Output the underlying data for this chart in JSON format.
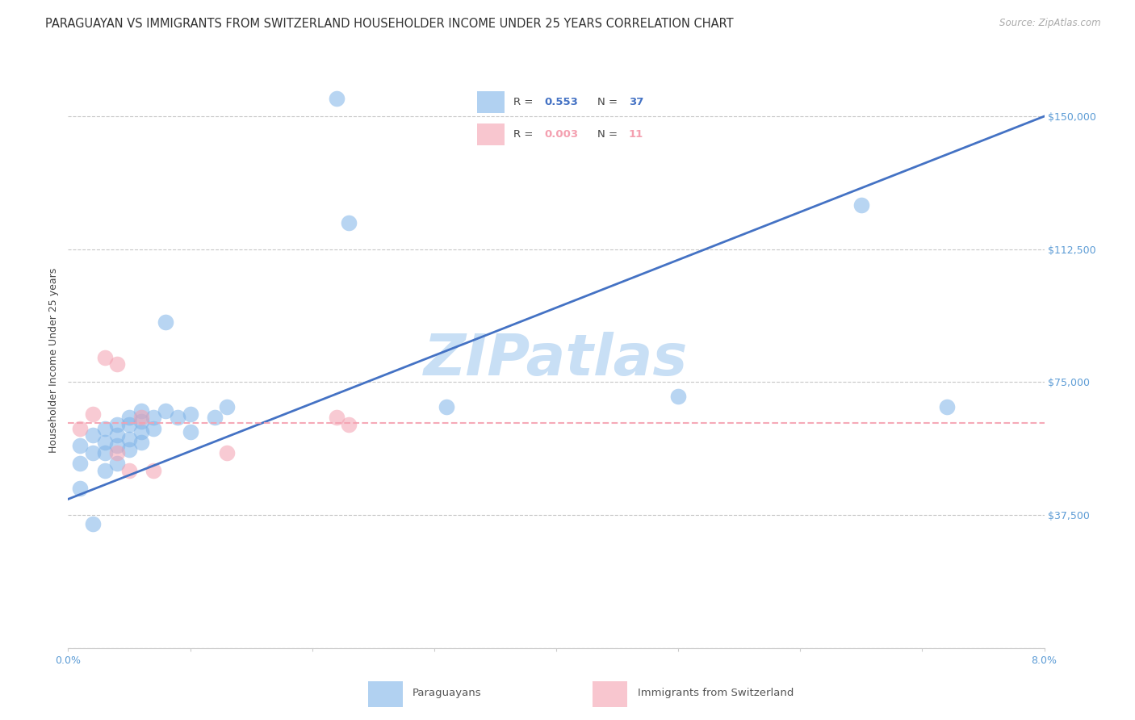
{
  "title": "PARAGUAYAN VS IMMIGRANTS FROM SWITZERLAND HOUSEHOLDER INCOME UNDER 25 YEARS CORRELATION CHART",
  "source": "Source: ZipAtlas.com",
  "ylabel": "Householder Income Under 25 years",
  "watermark": "ZIPatlas",
  "xlim": [
    0.0,
    0.08
  ],
  "ylim": [
    0,
    162500
  ],
  "yticks": [
    0,
    37500,
    75000,
    112500,
    150000
  ],
  "ytick_labels": [
    "",
    "$37,500",
    "$75,000",
    "$112,500",
    "$150,000"
  ],
  "legend_blue_label": "Paraguayans",
  "legend_pink_label": "Immigrants from Switzerland",
  "blue_color": "#7eb3e8",
  "pink_color": "#f4a0b0",
  "line_blue": "#4472c4",
  "line_pink": "#f4a0b0",
  "axis_color": "#5b9bd5",
  "grid_color": "#c8c8c8",
  "blue_points_x": [
    0.001,
    0.001,
    0.001,
    0.002,
    0.002,
    0.002,
    0.003,
    0.003,
    0.003,
    0.003,
    0.004,
    0.004,
    0.004,
    0.004,
    0.005,
    0.005,
    0.005,
    0.005,
    0.006,
    0.006,
    0.006,
    0.006,
    0.007,
    0.007,
    0.008,
    0.008,
    0.009,
    0.01,
    0.01,
    0.012,
    0.013,
    0.022,
    0.023,
    0.031,
    0.05,
    0.065,
    0.072
  ],
  "blue_points_y": [
    57000,
    52000,
    45000,
    60000,
    55000,
    35000,
    62000,
    58000,
    55000,
    50000,
    63000,
    60000,
    57000,
    52000,
    65000,
    63000,
    59000,
    56000,
    67000,
    64000,
    61000,
    58000,
    65000,
    62000,
    92000,
    67000,
    65000,
    66000,
    61000,
    65000,
    68000,
    155000,
    120000,
    68000,
    71000,
    125000,
    68000
  ],
  "pink_points_x": [
    0.001,
    0.002,
    0.003,
    0.004,
    0.004,
    0.005,
    0.006,
    0.007,
    0.013,
    0.022,
    0.023
  ],
  "pink_points_y": [
    62000,
    66000,
    82000,
    80000,
    55000,
    50000,
    65000,
    50000,
    55000,
    65000,
    63000
  ],
  "blue_trend_x": [
    0.0,
    0.08
  ],
  "blue_trend_y": [
    42000,
    150000
  ],
  "pink_trend_x": [
    0.0,
    0.08
  ],
  "pink_trend_y": [
    63500,
    63500
  ],
  "background_color": "#ffffff",
  "title_fontsize": 10.5,
  "axis_label_fontsize": 9,
  "tick_fontsize": 9,
  "watermark_fontsize": 52,
  "watermark_color": "#c8dff5",
  "source_text": "Source: ZipAtlas.com"
}
